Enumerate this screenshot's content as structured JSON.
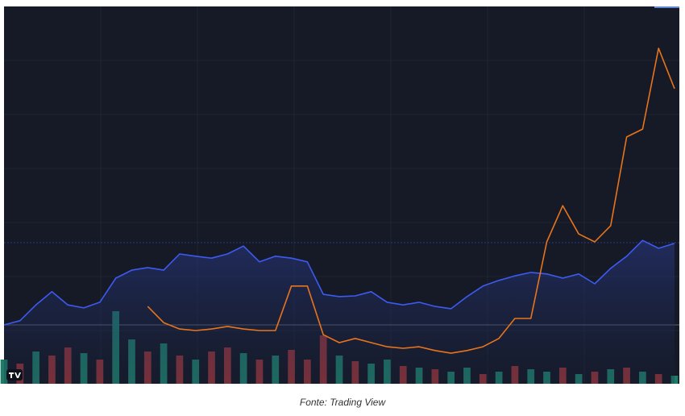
{
  "chart_data": {
    "type": "line",
    "source": "Fonte: Trading View",
    "ylim": [
      0,
      100
    ],
    "y2lim": [
      0,
      100
    ],
    "series": [
      {
        "color": "#3d5af1",
        "area": true,
        "values": [
          15.6,
          16.7,
          20.9,
          24.4,
          20.9,
          20.1,
          21.6,
          28.0,
          30.1,
          30.8,
          30.1,
          34.4,
          33.8,
          33.3,
          34.4,
          36.5,
          32.3,
          33.8,
          33.3,
          32.3,
          23.7,
          23.1,
          23.3,
          24.4,
          21.6,
          20.9,
          21.6,
          20.5,
          19.9,
          23.1,
          25.9,
          27.4,
          28.6,
          29.5,
          29.1,
          28.0,
          29.1,
          26.5,
          30.6,
          33.8,
          38.0,
          35.9,
          37.2
        ]
      },
      {
        "color": "#e8741c",
        "values": [
          null,
          null,
          null,
          null,
          null,
          null,
          null,
          null,
          null,
          20.5,
          16.2,
          14.5,
          14.1,
          14.5,
          15.2,
          14.5,
          14.1,
          14.1,
          25.9,
          25.9,
          13.0,
          10.9,
          12.0,
          10.9,
          9.8,
          9.4,
          9.8,
          8.8,
          8.1,
          8.8,
          9.8,
          12.0,
          17.3,
          17.3,
          37.6,
          47.2,
          39.7,
          37.6,
          41.9,
          65.4,
          67.5,
          88.9,
          78.2
        ]
      },
      {
        "type": "bar",
        "axis": "y2",
        "values": [
          30,
          25,
          40,
          35,
          45,
          38,
          30,
          90,
          55,
          40,
          50,
          35,
          30,
          40,
          45,
          38,
          30,
          35,
          42,
          30,
          60,
          35,
          28,
          25,
          30,
          22,
          20,
          18,
          15,
          20,
          12,
          15,
          22,
          18,
          15,
          20,
          12,
          15,
          18,
          20,
          15,
          12,
          10
        ],
        "colors": [
          "#1f7a68",
          "#8c3339",
          "#1f7a68",
          "#8c3339",
          "#8c3339",
          "#1f7a68",
          "#8c3339",
          "#1f7a68",
          "#1f7a68",
          "#8c3339",
          "#1f7a68",
          "#8c3339",
          "#1f7a68",
          "#8c3339",
          "#8c3339",
          "#1f7a68",
          "#8c3339",
          "#1f7a68",
          "#8c3339",
          "#8c3339",
          "#8c3339",
          "#1f7a68",
          "#8c3339",
          "#1f7a68",
          "#1f7a68",
          "#8c3339",
          "#1f7a68",
          "#8c3339",
          "#1f7a68",
          "#1f7a68",
          "#8c3339",
          "#1f7a68",
          "#8c3339",
          "#1f7a68",
          "#1f7a68",
          "#8c3339",
          "#1f7a68",
          "#8c3339",
          "#1f7a68",
          "#8c3339",
          "#1f7a68",
          "#8c3339",
          "#1f7a68"
        ]
      }
    ]
  }
}
